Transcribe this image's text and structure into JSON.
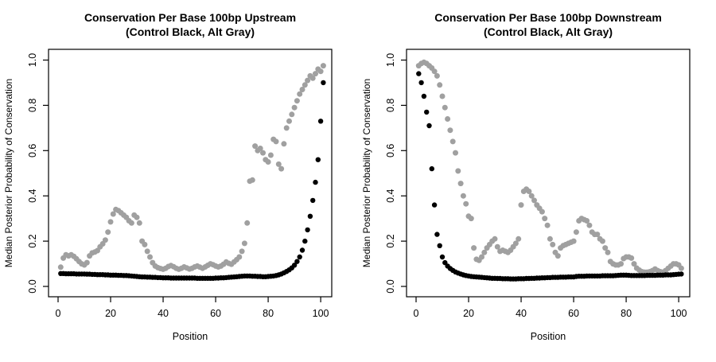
{
  "page_background": "#ffffff",
  "point_marker": "filled-circle",
  "colors": {
    "control": "#000000",
    "alt": "#a0a0a0",
    "axis": "#000000"
  },
  "chart_data": [
    {
      "type": "scatter",
      "title": "Conservation Per Base 100bp Upstream",
      "subtitle": "(Control Black, Alt Gray)",
      "xlabel": "Position",
      "ylabel": "Median Posterior Probability of Conservation",
      "x_tick_labels": [
        "0",
        "20",
        "40",
        "60",
        "80",
        "100"
      ],
      "x_tick_values": [
        0,
        20,
        40,
        60,
        80,
        100
      ],
      "y_tick_labels": [
        "0.0",
        "0.2",
        "0.4",
        "0.6",
        "0.8",
        "1.0"
      ],
      "y_tick_values": [
        0,
        0.2,
        0.4,
        0.6,
        0.8,
        1.0
      ],
      "xlim": [
        -3,
        105
      ],
      "ylim": [
        -0.04,
        1.04
      ],
      "grid": false,
      "legend": "encoded in subtitle (Control=black, Alt=gray)",
      "x_start": 1,
      "series": [
        {
          "name": "Alt",
          "color": "#a0a0a0",
          "values": [
            0.085,
            0.125,
            0.14,
            0.135,
            0.14,
            0.133,
            0.122,
            0.11,
            0.1,
            0.095,
            0.105,
            0.135,
            0.148,
            0.152,
            0.158,
            0.175,
            0.188,
            0.205,
            0.24,
            0.285,
            0.32,
            0.34,
            0.335,
            0.325,
            0.315,
            0.305,
            0.29,
            0.28,
            0.315,
            0.305,
            0.28,
            0.2,
            0.185,
            0.155,
            0.13,
            0.105,
            0.09,
            0.083,
            0.079,
            0.076,
            0.08,
            0.088,
            0.092,
            0.087,
            0.08,
            0.076,
            0.08,
            0.086,
            0.082,
            0.077,
            0.08,
            0.086,
            0.09,
            0.085,
            0.08,
            0.086,
            0.093,
            0.1,
            0.096,
            0.09,
            0.086,
            0.09,
            0.098,
            0.108,
            0.102,
            0.098,
            0.108,
            0.118,
            0.13,
            0.155,
            0.19,
            0.28,
            0.465,
            0.47,
            0.62,
            0.6,
            0.61,
            0.59,
            0.56,
            0.55,
            0.58,
            0.65,
            0.64,
            0.54,
            0.52,
            0.63,
            0.7,
            0.73,
            0.76,
            0.79,
            0.82,
            0.85,
            0.87,
            0.89,
            0.91,
            0.93,
            0.92,
            0.94,
            0.96,
            0.95,
            0.975
          ]
        },
        {
          "name": "Control",
          "color": "#000000",
          "values": [
            0.057,
            0.057,
            0.056,
            0.056,
            0.056,
            0.056,
            0.055,
            0.055,
            0.055,
            0.055,
            0.054,
            0.054,
            0.053,
            0.053,
            0.052,
            0.052,
            0.052,
            0.051,
            0.051,
            0.05,
            0.05,
            0.05,
            0.049,
            0.049,
            0.048,
            0.048,
            0.047,
            0.046,
            0.045,
            0.044,
            0.043,
            0.042,
            0.042,
            0.041,
            0.041,
            0.04,
            0.04,
            0.039,
            0.039,
            0.038,
            0.038,
            0.038,
            0.037,
            0.037,
            0.037,
            0.037,
            0.037,
            0.037,
            0.037,
            0.037,
            0.037,
            0.037,
            0.036,
            0.036,
            0.036,
            0.036,
            0.036,
            0.036,
            0.036,
            0.037,
            0.037,
            0.038,
            0.038,
            0.039,
            0.04,
            0.041,
            0.042,
            0.043,
            0.044,
            0.045,
            0.046,
            0.046,
            0.046,
            0.045,
            0.045,
            0.044,
            0.044,
            0.043,
            0.043,
            0.044,
            0.045,
            0.046,
            0.048,
            0.051,
            0.055,
            0.06,
            0.066,
            0.073,
            0.082,
            0.094,
            0.11,
            0.13,
            0.16,
            0.2,
            0.25,
            0.31,
            0.38,
            0.46,
            0.56,
            0.73,
            0.9
          ]
        }
      ]
    },
    {
      "type": "scatter",
      "title": "Conservation Per Base 100bp Downstream",
      "subtitle": "(Control Black, Alt Gray)",
      "xlabel": "Position",
      "ylabel": "Median Posterior Probability of Conservation",
      "x_tick_labels": [
        "0",
        "20",
        "40",
        "60",
        "80",
        "100"
      ],
      "x_tick_values": [
        0,
        20,
        40,
        60,
        80,
        100
      ],
      "y_tick_labels": [
        "0.0",
        "0.2",
        "0.4",
        "0.6",
        "0.8",
        "1.0"
      ],
      "y_tick_values": [
        0,
        0.2,
        0.4,
        0.6,
        0.8,
        1.0
      ],
      "xlim": [
        -3,
        105
      ],
      "ylim": [
        -0.04,
        1.04
      ],
      "grid": false,
      "legend": "encoded in subtitle (Control=black, Alt=gray)",
      "x_start": 1,
      "series": [
        {
          "name": "Alt",
          "color": "#a0a0a0",
          "values": [
            0.975,
            0.985,
            0.99,
            0.985,
            0.975,
            0.965,
            0.95,
            0.93,
            0.89,
            0.84,
            0.79,
            0.74,
            0.69,
            0.64,
            0.59,
            0.51,
            0.455,
            0.4,
            0.365,
            0.31,
            0.3,
            0.17,
            0.12,
            0.115,
            0.13,
            0.15,
            0.17,
            0.185,
            0.2,
            0.21,
            0.175,
            0.155,
            0.16,
            0.155,
            0.15,
            0.16,
            0.175,
            0.19,
            0.21,
            0.36,
            0.42,
            0.43,
            0.42,
            0.4,
            0.38,
            0.36,
            0.345,
            0.33,
            0.3,
            0.27,
            0.21,
            0.185,
            0.15,
            0.135,
            0.17,
            0.18,
            0.185,
            0.19,
            0.195,
            0.2,
            0.24,
            0.29,
            0.3,
            0.295,
            0.29,
            0.27,
            0.24,
            0.23,
            0.23,
            0.21,
            0.2,
            0.17,
            0.15,
            0.11,
            0.1,
            0.095,
            0.095,
            0.1,
            0.123,
            0.13,
            0.13,
            0.125,
            0.1,
            0.081,
            0.072,
            0.065,
            0.063,
            0.063,
            0.065,
            0.07,
            0.077,
            0.07,
            0.065,
            0.063,
            0.07,
            0.08,
            0.09,
            0.1,
            0.1,
            0.095,
            0.08
          ]
        },
        {
          "name": "Control",
          "color": "#000000",
          "values": [
            0.94,
            0.9,
            0.84,
            0.77,
            0.71,
            0.52,
            0.36,
            0.23,
            0.18,
            0.13,
            0.105,
            0.09,
            0.079,
            0.071,
            0.064,
            0.059,
            0.055,
            0.051,
            0.048,
            0.046,
            0.044,
            0.043,
            0.042,
            0.041,
            0.04,
            0.039,
            0.038,
            0.037,
            0.036,
            0.036,
            0.035,
            0.035,
            0.034,
            0.034,
            0.034,
            0.033,
            0.033,
            0.033,
            0.034,
            0.034,
            0.034,
            0.035,
            0.035,
            0.036,
            0.036,
            0.037,
            0.037,
            0.038,
            0.038,
            0.039,
            0.039,
            0.04,
            0.04,
            0.04,
            0.041,
            0.041,
            0.041,
            0.042,
            0.042,
            0.042,
            0.044,
            0.045,
            0.045,
            0.045,
            0.046,
            0.046,
            0.046,
            0.046,
            0.046,
            0.046,
            0.047,
            0.047,
            0.047,
            0.047,
            0.047,
            0.048,
            0.049,
            0.05,
            0.05,
            0.05,
            0.049,
            0.048,
            0.048,
            0.048,
            0.048,
            0.048,
            0.048,
            0.049,
            0.049,
            0.049,
            0.049,
            0.05,
            0.05,
            0.05,
            0.051,
            0.051,
            0.051,
            0.052,
            0.053,
            0.054,
            0.055
          ]
        }
      ]
    }
  ]
}
